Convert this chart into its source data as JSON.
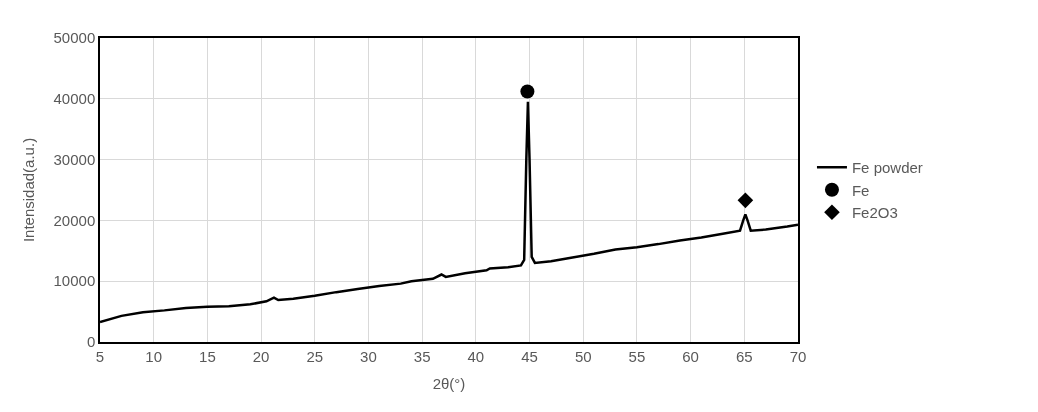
{
  "chart_data": {
    "type": "line",
    "xlabel": "2θ(°)",
    "ylabel": "Intensidad(a.u.)",
    "xlim": [
      5,
      70
    ],
    "xticks": [
      5,
      10,
      15,
      20,
      25,
      30,
      35,
      40,
      45,
      50,
      55,
      60,
      65,
      70
    ],
    "ylim": [
      0,
      50000
    ],
    "yticks": [
      0,
      10000,
      20000,
      30000,
      40000,
      50000
    ],
    "grid": true,
    "legend": "right",
    "series": [
      {
        "name": "Fe powder",
        "color": "#000000",
        "marker": "none",
        "x": [
          5,
          7,
          9,
          11,
          13,
          15,
          17,
          19,
          20.5,
          21.2,
          21.6,
          23,
          25,
          27,
          29,
          31,
          33,
          34,
          36,
          36.8,
          37.2,
          39,
          41,
          41.3,
          43,
          44.2,
          44.5,
          44.7,
          44.85,
          45.0,
          45.2,
          45.5,
          47,
          49,
          51,
          53,
          55,
          57,
          59,
          61,
          63,
          64.6,
          64.9,
          65.1,
          65.3,
          65.6,
          67,
          69,
          70
        ],
        "values": [
          3300,
          4300,
          4900,
          5200,
          5600,
          5800,
          5900,
          6200,
          6700,
          7300,
          6900,
          7100,
          7600,
          8200,
          8700,
          9200,
          9600,
          10000,
          10400,
          11100,
          10700,
          11300,
          11800,
          12100,
          12300,
          12600,
          13500,
          30000,
          39500,
          30000,
          14000,
          13000,
          13300,
          13900,
          14500,
          15200,
          15600,
          16100,
          16700,
          17200,
          17800,
          18300,
          20000,
          21000,
          20000,
          18300,
          18500,
          19000,
          19300
        ]
      },
      {
        "name": "Fe",
        "color": "#000000",
        "type": "scatter",
        "marker": "circle",
        "x": [
          44.8
        ],
        "values": [
          41200
        ]
      },
      {
        "name": "Fe2O3",
        "color": "#000000",
        "type": "scatter",
        "marker": "diamond",
        "x": [
          65.1
        ],
        "values": [
          23300
        ]
      }
    ]
  }
}
